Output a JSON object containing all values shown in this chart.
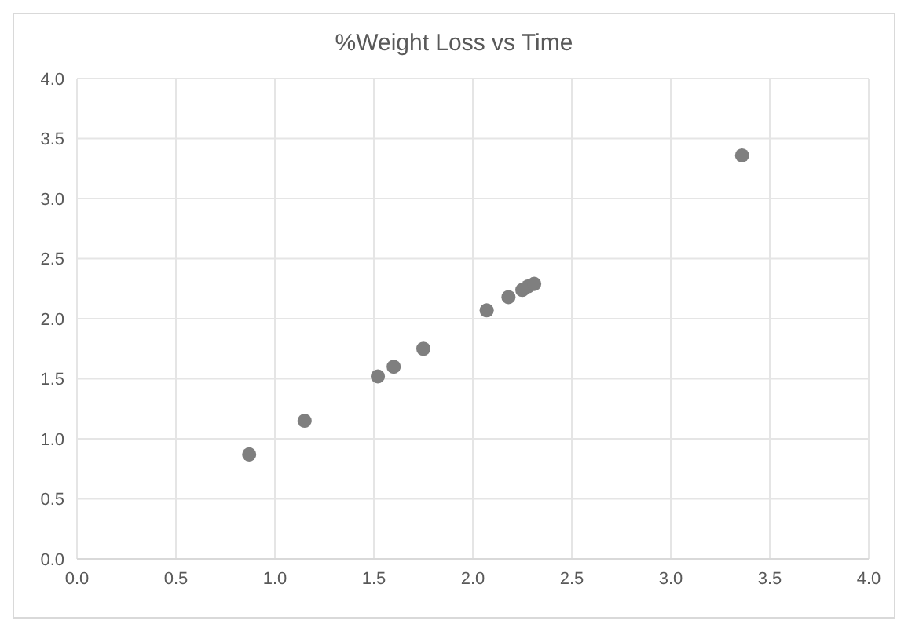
{
  "chart_data": {
    "type": "scatter",
    "title": "%Weight Loss vs Time",
    "x": [
      0.87,
      1.15,
      1.52,
      1.6,
      1.75,
      2.07,
      2.18,
      2.25,
      2.28,
      2.31,
      3.36
    ],
    "series": [
      {
        "color": "#7f7f7f",
        "values": [
          0.87,
          1.15,
          1.52,
          1.6,
          1.75,
          2.07,
          2.18,
          2.24,
          2.27,
          2.29,
          3.36
        ]
      }
    ],
    "xlim": [
      0,
      4
    ],
    "xticks": [
      {
        "value": 0,
        "label": "0.0"
      },
      {
        "value": 0.5,
        "label": "0.5"
      },
      {
        "value": 1,
        "label": "1.0"
      },
      {
        "value": 1.5,
        "label": "1.5"
      },
      {
        "value": 2,
        "label": "2.0"
      },
      {
        "value": 2.5,
        "label": "2.5"
      },
      {
        "value": 3,
        "label": "3.0"
      },
      {
        "value": 3.5,
        "label": "3.5"
      },
      {
        "value": 4,
        "label": "4.0"
      }
    ],
    "ylim": [
      0,
      4
    ],
    "yticks": [
      {
        "value": 0,
        "label": "0.0"
      },
      {
        "value": 0.5,
        "label": "0.5"
      },
      {
        "value": 1,
        "label": "1.0"
      },
      {
        "value": 1.5,
        "label": "1.5"
      },
      {
        "value": 2,
        "label": "2.0"
      },
      {
        "value": 2.5,
        "label": "2.5"
      },
      {
        "value": 3,
        "label": "3.0"
      },
      {
        "value": 3.5,
        "label": "3.5"
      },
      {
        "value": 4,
        "label": "4.0"
      }
    ],
    "grid": true,
    "marker": "circle"
  }
}
